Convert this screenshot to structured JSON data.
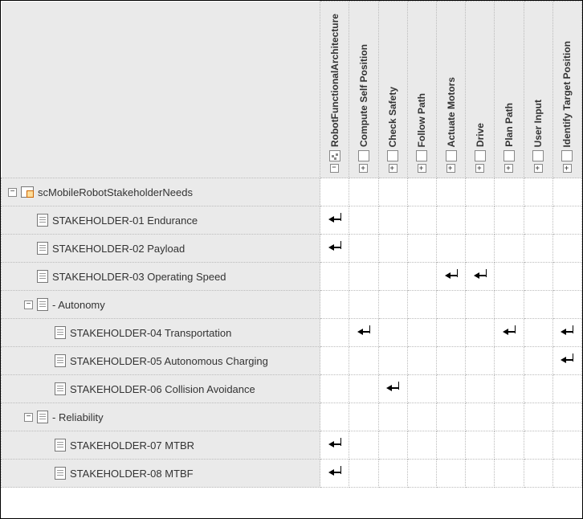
{
  "columns": [
    {
      "id": "c0",
      "label": "RobotFunctionalArchitecture",
      "icon": "arch",
      "expand": "minus"
    },
    {
      "id": "c1",
      "label": "Compute Self Position",
      "icon": "block",
      "expand": "plus"
    },
    {
      "id": "c2",
      "label": "Check Safety",
      "icon": "block",
      "expand": "plus"
    },
    {
      "id": "c3",
      "label": "Follow Path",
      "icon": "block",
      "expand": "plus"
    },
    {
      "id": "c4",
      "label": "Actuate Motors",
      "icon": "block",
      "expand": "plus"
    },
    {
      "id": "c5",
      "label": "Drive",
      "icon": "block",
      "expand": "plus"
    },
    {
      "id": "c6",
      "label": "Plan Path",
      "icon": "block",
      "expand": "plus"
    },
    {
      "id": "c7",
      "label": "User Input",
      "icon": "block",
      "expand": "plus"
    },
    {
      "id": "c8",
      "label": "Identify Target Position",
      "icon": "block",
      "expand": "plus"
    }
  ],
  "rows": [
    {
      "id": "r0",
      "label": "scMobileRobotStakeholderNeeds",
      "indent": 0,
      "toggle": "minus",
      "icon": "pkg",
      "marks": []
    },
    {
      "id": "r1",
      "label": "STAKEHOLDER-01 Endurance",
      "indent": 1,
      "toggle": "",
      "icon": "doc",
      "marks": [
        "c0"
      ]
    },
    {
      "id": "r2",
      "label": "STAKEHOLDER-02 Payload",
      "indent": 1,
      "toggle": "",
      "icon": "doc",
      "marks": [
        "c0"
      ]
    },
    {
      "id": "r3",
      "label": "STAKEHOLDER-03 Operating Speed",
      "indent": 1,
      "toggle": "",
      "icon": "doc",
      "marks": [
        "c4",
        "c5"
      ]
    },
    {
      "id": "r4",
      "label": "- Autonomy",
      "indent": 1,
      "toggle": "minus",
      "icon": "doc",
      "marks": []
    },
    {
      "id": "r5",
      "label": "STAKEHOLDER-04 Transportation",
      "indent": 2,
      "toggle": "",
      "icon": "doc",
      "marks": [
        "c1",
        "c6",
        "c8"
      ]
    },
    {
      "id": "r6",
      "label": "STAKEHOLDER-05 Autonomous Charging",
      "indent": 2,
      "toggle": "",
      "icon": "doc",
      "marks": [
        "c8"
      ]
    },
    {
      "id": "r7",
      "label": "STAKEHOLDER-06 Collision Avoidance",
      "indent": 2,
      "toggle": "",
      "icon": "doc",
      "marks": [
        "c2"
      ]
    },
    {
      "id": "r8",
      "label": "- Reliability",
      "indent": 1,
      "toggle": "minus",
      "icon": "doc",
      "marks": []
    },
    {
      "id": "r9",
      "label": "STAKEHOLDER-07 MTBR",
      "indent": 2,
      "toggle": "",
      "icon": "doc",
      "marks": [
        "c0"
      ]
    },
    {
      "id": "r10",
      "label": "STAKEHOLDER-08 MTBF",
      "indent": 2,
      "toggle": "",
      "icon": "doc",
      "marks": [
        "c0"
      ]
    }
  ],
  "colors": {
    "header_bg": "#eaeaea",
    "cell_bg": "#ffffff",
    "border": "#bbbbbb",
    "text": "#333333",
    "arrow": "#000000"
  }
}
